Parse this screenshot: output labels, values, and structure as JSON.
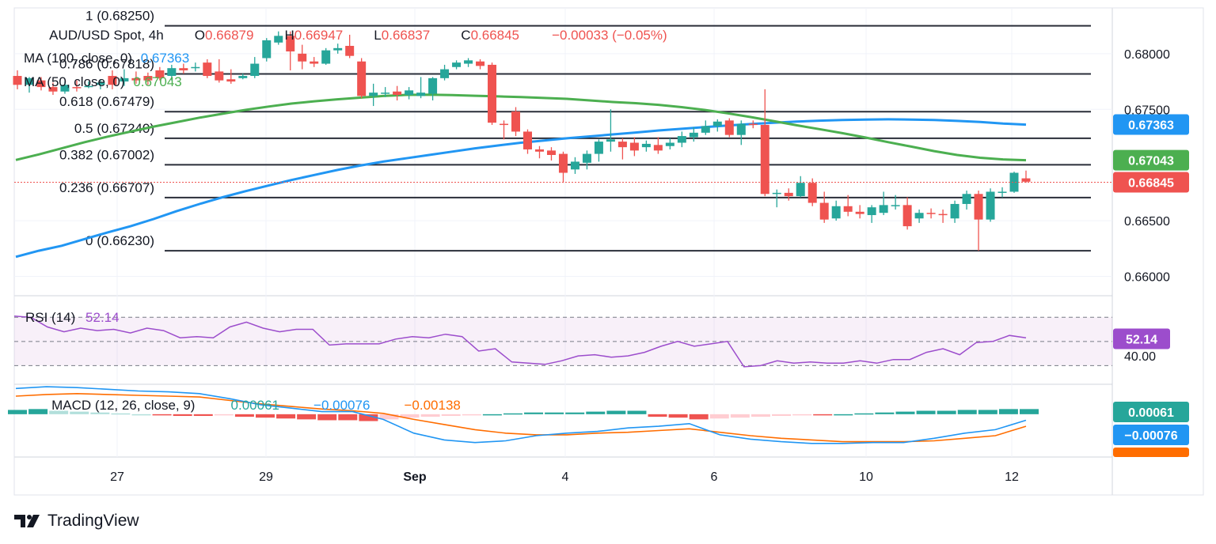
{
  "header": {
    "symbol": "AUD/USD Spot, 4h",
    "o_label": "O",
    "o_value": "0.66879",
    "h_label": "H",
    "h_value": "0.66947",
    "l_label": "L",
    "l_value": "0.66837",
    "c_label": "C",
    "c_value": "0.66845",
    "change": "−0.00033 (−0.05%)"
  },
  "legend": {
    "ma100_label": "MA (100, close, 0)",
    "ma100_value": "0.67363",
    "ma50_label": "MA (50, close, 0)",
    "ma50_value": "0.67043"
  },
  "colors": {
    "up": "#26a69a",
    "down": "#ef5350",
    "ma100": "#2196f3",
    "ma50": "#4caf50",
    "rsi": "#9c4dcc",
    "macd": "#2196f3",
    "signal": "#ff6d00",
    "text": "#131722"
  },
  "chart_data": [
    {
      "type": "candlestick",
      "title": "AUD/USD Spot, 4h",
      "ylim": [
        0.6584,
        0.6834
      ],
      "y_ticks": [
        "0.68000",
        "0.67500",
        "0.66500",
        "0.66000"
      ],
      "x_ticks": [
        "27",
        "29",
        "Sep",
        "4",
        "6",
        "10",
        "12"
      ],
      "fibonacci": [
        {
          "label": "1 (0.68250)",
          "value": 0.6825
        },
        {
          "label": "0.786 (0.67818)",
          "value": 0.67818
        },
        {
          "label": "0.618 (0.67479)",
          "value": 0.67479
        },
        {
          "label": "0.5 (0.67240)",
          "value": 0.6724
        },
        {
          "label": "0.382 (0.67002)",
          "value": 0.67002
        },
        {
          "label": "0.236 (0.66707)",
          "value": 0.66707
        },
        {
          "label": "0 (0.66230)",
          "value": 0.6623
        }
      ],
      "price_badges": [
        {
          "name": "ma100",
          "text": "0.67363",
          "value": 0.67363
        },
        {
          "name": "ma50",
          "text": "0.67043",
          "value": 0.67043
        },
        {
          "name": "last",
          "text": "0.66845",
          "value": 0.66845
        }
      ],
      "candles": [
        [
          0.678,
          0.6772,
          0.6785,
          0.6768
        ],
        [
          0.6772,
          0.6778,
          0.6779,
          0.6765
        ],
        [
          0.6776,
          0.677,
          0.6779,
          0.6767
        ],
        [
          0.677,
          0.6766,
          0.6774,
          0.6763
        ],
        [
          0.6766,
          0.6772,
          0.6775,
          0.6764
        ],
        [
          0.677,
          0.6769,
          0.6776,
          0.6766
        ],
        [
          0.677,
          0.6771,
          0.6775,
          0.6769
        ],
        [
          0.6772,
          0.6774,
          0.6777,
          0.6768
        ],
        [
          0.678,
          0.6772,
          0.6785,
          0.6768
        ],
        [
          0.6775,
          0.6778,
          0.6786,
          0.6771
        ],
        [
          0.6778,
          0.6776,
          0.6784,
          0.6773
        ],
        [
          0.678,
          0.6776,
          0.6783,
          0.6772
        ],
        [
          0.6785,
          0.6778,
          0.6788,
          0.6776
        ],
        [
          0.678,
          0.6787,
          0.679,
          0.6776
        ],
        [
          0.6787,
          0.6785,
          0.6791,
          0.6782
        ],
        [
          0.6787,
          0.6788,
          0.6792,
          0.6784
        ],
        [
          0.6792,
          0.678,
          0.6795,
          0.6778
        ],
        [
          0.6784,
          0.6776,
          0.6795,
          0.6774
        ],
        [
          0.6777,
          0.6775,
          0.6786,
          0.6773
        ],
        [
          0.6778,
          0.678,
          0.6782,
          0.6777
        ],
        [
          0.678,
          0.6791,
          0.6797,
          0.6778
        ],
        [
          0.6796,
          0.6812,
          0.6814,
          0.6793
        ],
        [
          0.681,
          0.6816,
          0.682,
          0.6808
        ],
        [
          0.6816,
          0.6802,
          0.682,
          0.6785
        ],
        [
          0.68,
          0.6793,
          0.6808,
          0.6786
        ],
        [
          0.6793,
          0.6791,
          0.6797,
          0.6788
        ],
        [
          0.6791,
          0.6803,
          0.6805,
          0.679
        ],
        [
          0.6803,
          0.6805,
          0.6809,
          0.68
        ],
        [
          0.6807,
          0.6798,
          0.6817,
          0.6796
        ],
        [
          0.6793,
          0.6762,
          0.6796,
          0.676
        ],
        [
          0.6762,
          0.6765,
          0.6773,
          0.6753
        ],
        [
          0.6765,
          0.6765,
          0.677,
          0.6761
        ],
        [
          0.6766,
          0.6763,
          0.6771,
          0.6758
        ],
        [
          0.6763,
          0.6767,
          0.677,
          0.6759
        ],
        [
          0.6762,
          0.6765,
          0.6779,
          0.676
        ],
        [
          0.6764,
          0.6778,
          0.6779,
          0.6758
        ],
        [
          0.6778,
          0.6786,
          0.679,
          0.6776
        ],
        [
          0.6788,
          0.6792,
          0.6794,
          0.6786
        ],
        [
          0.6791,
          0.6794,
          0.6796,
          0.6788
        ],
        [
          0.6793,
          0.6789,
          0.6795,
          0.6786
        ],
        [
          0.679,
          0.6738,
          0.6792,
          0.6736
        ],
        [
          0.6737,
          0.6736,
          0.674,
          0.6723
        ],
        [
          0.6748,
          0.673,
          0.6752,
          0.6726
        ],
        [
          0.673,
          0.6714,
          0.6732,
          0.671
        ],
        [
          0.6714,
          0.6712,
          0.6717,
          0.6706
        ],
        [
          0.6713,
          0.6709,
          0.6716,
          0.6704
        ],
        [
          0.671,
          0.6693,
          0.6712,
          0.6684
        ],
        [
          0.6696,
          0.6703,
          0.6707,
          0.6692
        ],
        [
          0.6702,
          0.671,
          0.6713,
          0.6696
        ],
        [
          0.671,
          0.6721,
          0.6723,
          0.6703
        ],
        [
          0.6721,
          0.6723,
          0.675,
          0.6712
        ],
        [
          0.6721,
          0.6716,
          0.6724,
          0.6705
        ],
        [
          0.672,
          0.6713,
          0.6725,
          0.6708
        ],
        [
          0.6716,
          0.6719,
          0.6722,
          0.6712
        ],
        [
          0.6718,
          0.6713,
          0.6725,
          0.671
        ],
        [
          0.6717,
          0.672,
          0.6724,
          0.6714
        ],
        [
          0.672,
          0.6726,
          0.673,
          0.6716
        ],
        [
          0.6725,
          0.6729,
          0.6734,
          0.6721
        ],
        [
          0.6729,
          0.6735,
          0.674,
          0.6727
        ],
        [
          0.6735,
          0.6739,
          0.6741,
          0.673
        ],
        [
          0.674,
          0.6727,
          0.6742,
          0.6725
        ],
        [
          0.6727,
          0.6737,
          0.674,
          0.6718
        ],
        [
          0.6737,
          0.6736,
          0.674,
          0.6733
        ],
        [
          0.6736,
          0.6674,
          0.6768,
          0.6672
        ],
        [
          0.6674,
          0.6675,
          0.6678,
          0.6662
        ],
        [
          0.6675,
          0.6672,
          0.6679,
          0.6668
        ],
        [
          0.6672,
          0.6684,
          0.669,
          0.6671
        ],
        [
          0.6684,
          0.6666,
          0.6688,
          0.6663
        ],
        [
          0.6666,
          0.6651,
          0.6676,
          0.6648
        ],
        [
          0.6652,
          0.6663,
          0.6668,
          0.665
        ],
        [
          0.6663,
          0.6658,
          0.6673,
          0.6654
        ],
        [
          0.6658,
          0.6656,
          0.6664,
          0.6652
        ],
        [
          0.6655,
          0.6662,
          0.6664,
          0.6648
        ],
        [
          0.6657,
          0.6664,
          0.6676,
          0.6655
        ],
        [
          0.6664,
          0.6664,
          0.6673,
          0.666
        ],
        [
          0.6664,
          0.6645,
          0.6671,
          0.6642
        ],
        [
          0.6652,
          0.6657,
          0.666,
          0.6648
        ],
        [
          0.6657,
          0.6656,
          0.6661,
          0.6652
        ],
        [
          0.6656,
          0.6655,
          0.666,
          0.6648
        ],
        [
          0.6652,
          0.6665,
          0.6668,
          0.6648
        ],
        [
          0.6665,
          0.6674,
          0.6677,
          0.666
        ],
        [
          0.6674,
          0.6651,
          0.6677,
          0.6623
        ],
        [
          0.6651,
          0.6676,
          0.6679,
          0.6649
        ],
        [
          0.6676,
          0.6676,
          0.668,
          0.6671
        ],
        [
          0.6676,
          0.6693,
          0.6694,
          0.6675
        ],
        [
          0.6688,
          0.6685,
          0.6695,
          0.6684
        ]
      ],
      "ma100": [
        0.66175,
        0.6623,
        0.66275,
        0.66335,
        0.66395,
        0.6645,
        0.66515,
        0.66585,
        0.6665,
        0.6671,
        0.66765,
        0.66815,
        0.66865,
        0.6691,
        0.66955,
        0.66995,
        0.6703,
        0.6706,
        0.6709,
        0.6712,
        0.6715,
        0.67175,
        0.672,
        0.6722,
        0.6724,
        0.67257,
        0.67275,
        0.67292,
        0.6731,
        0.67325,
        0.6734,
        0.67355,
        0.67368,
        0.6738,
        0.6739,
        0.67398,
        0.67404,
        0.67408,
        0.6741,
        0.67408,
        0.67404,
        0.67396,
        0.67386,
        0.67372,
        0.67363
      ],
      "ma50": [
        0.67045,
        0.67095,
        0.6715,
        0.67205,
        0.67255,
        0.673,
        0.67345,
        0.67385,
        0.67425,
        0.6746,
        0.67495,
        0.67525,
        0.67552,
        0.67572,
        0.6759,
        0.67605,
        0.6762,
        0.6763,
        0.67632,
        0.67628,
        0.67622,
        0.67616,
        0.6761,
        0.67602,
        0.67594,
        0.6758,
        0.67566,
        0.67555,
        0.6754,
        0.6752,
        0.67495,
        0.67464,
        0.67431,
        0.67395,
        0.67357,
        0.67322,
        0.67286,
        0.67247,
        0.67205,
        0.67165,
        0.67125,
        0.6709,
        0.67065,
        0.6705,
        0.67043
      ],
      "rsi": {
        "label": "RSI (14)",
        "value_text": "52.14",
        "current": 52.14,
        "ylim": [
          25,
          80
        ],
        "bands": [
          30,
          50,
          70
        ],
        "tick": "40.00",
        "values": [
          71,
          70,
          62,
          58,
          61,
          59,
          60,
          57,
          61,
          59,
          53,
          54,
          53,
          62,
          66,
          61,
          58,
          60,
          60,
          47,
          48,
          48,
          48,
          52,
          54,
          53,
          56,
          54,
          42,
          44,
          33,
          32,
          31,
          34,
          38,
          39,
          37,
          38,
          41,
          46,
          50,
          46,
          48,
          50,
          29,
          30,
          34,
          32,
          33,
          32,
          32,
          34,
          32,
          35,
          35,
          41,
          44,
          39,
          49,
          50,
          55,
          53
        ]
      },
      "macd": {
        "label": "MACD (12, 26, close, 9)",
        "macd_text": "0.00061",
        "macd_value_text": "−0.00076",
        "signal_text": "−0.00138",
        "ylim": [
          -0.0048,
          0.0033
        ],
        "macd_values": [
          0.003,
          0.0032,
          0.0031,
          0.0029,
          0.0027,
          0.0026,
          0.0024,
          0.0018,
          0.0011,
          0.0007,
          0.0003,
          0.0003,
          -0.0006,
          -0.0022,
          -0.003,
          -0.0033,
          -0.0031,
          -0.0025,
          -0.0022,
          -0.002,
          -0.0016,
          -0.0014,
          -0.0011,
          -0.0024,
          -0.0029,
          -0.0032,
          -0.0034,
          -0.0034,
          -0.0033,
          -0.0033,
          -0.0028,
          -0.0022,
          -0.0018,
          -0.0007
        ],
        "signal_values": [
          0.0021,
          0.0023,
          0.0024,
          0.0023,
          0.0022,
          0.0021,
          0.002,
          0.0016,
          0.0012,
          0.0009,
          0.0006,
          0.0004,
          0.0001,
          -0.0006,
          -0.0012,
          -0.0018,
          -0.0022,
          -0.0024,
          -0.0024,
          -0.0022,
          -0.0021,
          -0.0019,
          -0.0017,
          -0.0021,
          -0.0025,
          -0.0028,
          -0.003,
          -0.0032,
          -0.0032,
          -0.0032,
          -0.0031,
          -0.0028,
          -0.0025,
          -0.0014
        ],
        "histogram": [
          0.0005,
          0.0006,
          0.0004,
          0.0003,
          0.0002,
          0.0001,
          0.0,
          -0.0001,
          -0.0002,
          -0.0002,
          -0.0001,
          -0.0003,
          -0.0004,
          -0.0005,
          -0.0006,
          -0.0007,
          -0.0007,
          -0.0008,
          -0.0006,
          -0.0004,
          -0.0003,
          -0.0002,
          -0.0001,
          0.0,
          0.0001,
          0.0002,
          0.0002,
          0.0002,
          0.0003,
          0.0004,
          0.0004,
          -0.0003,
          -0.0004,
          -0.0006,
          -0.0005,
          -0.0004,
          -0.0003,
          -0.0002,
          -0.0001,
          -0.0001,
          0.0,
          0.0001,
          0.0002,
          0.0003,
          0.0004,
          0.0004,
          0.0005,
          0.0005,
          0.0006,
          0.0006
        ]
      }
    }
  ],
  "footer": {
    "brand": "TradingView"
  }
}
